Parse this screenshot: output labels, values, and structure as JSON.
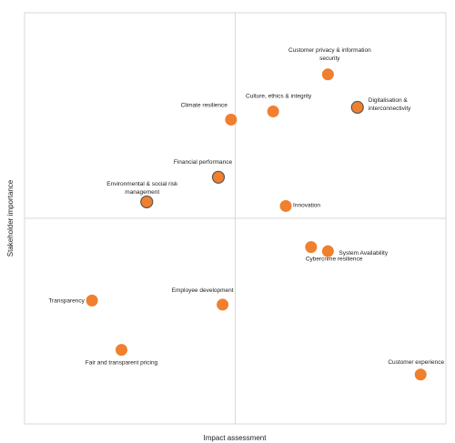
{
  "chart_data": {
    "type": "scatter",
    "xlabel": "Impact assessment",
    "ylabel": "Stakeholder importance",
    "xlim": [
      0,
      10
    ],
    "ylim": [
      0,
      10
    ],
    "quadrant_dividers": {
      "x": 5,
      "y": 5
    },
    "grid": false,
    "legend": "none",
    "marker_color": "#f07f2e",
    "marker_edge_color": "#595959",
    "points": [
      {
        "label": "Customer privacy & information security",
        "label_lines": [
          "Customer privacy & information",
          "security"
        ],
        "x": 7.2,
        "y": 8.5,
        "outlined": false
      },
      {
        "label": "Digitalisation & interconnectivity",
        "label_lines": [
          "Digitalisation &",
          "interconnectivity"
        ],
        "x": 7.9,
        "y": 7.7,
        "outlined": true
      },
      {
        "label": "Culture, ethics & integrity",
        "label_lines": [
          "Culture, ethics & integrity"
        ],
        "x": 5.9,
        "y": 7.6,
        "outlined": false
      },
      {
        "label": "Climate resilience",
        "label_lines": [
          "Climate resilience"
        ],
        "x": 4.9,
        "y": 7.4,
        "outlined": false
      },
      {
        "label": "Financial performance",
        "label_lines": [
          "Financial performance"
        ],
        "x": 4.6,
        "y": 6.0,
        "outlined": true
      },
      {
        "label": "Environmental & social risk management",
        "label_lines": [
          "Environmental & social risk",
          "management"
        ],
        "x": 2.9,
        "y": 5.4,
        "outlined": true
      },
      {
        "label": "Innovation",
        "label_lines": [
          "Innovation"
        ],
        "x": 6.2,
        "y": 5.3,
        "outlined": false
      },
      {
        "label": "Cybercrime resilience",
        "label_lines": [
          "Cybercrime resilience"
        ],
        "x": 6.8,
        "y": 4.3,
        "outlined": false
      },
      {
        "label": "System Availability",
        "label_lines": [
          "System Availability"
        ],
        "x": 7.2,
        "y": 4.2,
        "outlined": false
      },
      {
        "label": "Transparency",
        "label_lines": [
          "Transparency"
        ],
        "x": 1.6,
        "y": 3.0,
        "outlined": false
      },
      {
        "label": "Employee development",
        "label_lines": [
          "Employee development"
        ],
        "x": 4.7,
        "y": 2.9,
        "outlined": false
      },
      {
        "label": "Fair and transparent pricing",
        "label_lines": [
          "Fair and transparent pricing"
        ],
        "x": 2.3,
        "y": 1.8,
        "outlined": false
      },
      {
        "label": "Customer experience",
        "label_lines": [
          "Customer experience"
        ],
        "x": 9.4,
        "y": 1.2,
        "outlined": false
      }
    ]
  }
}
